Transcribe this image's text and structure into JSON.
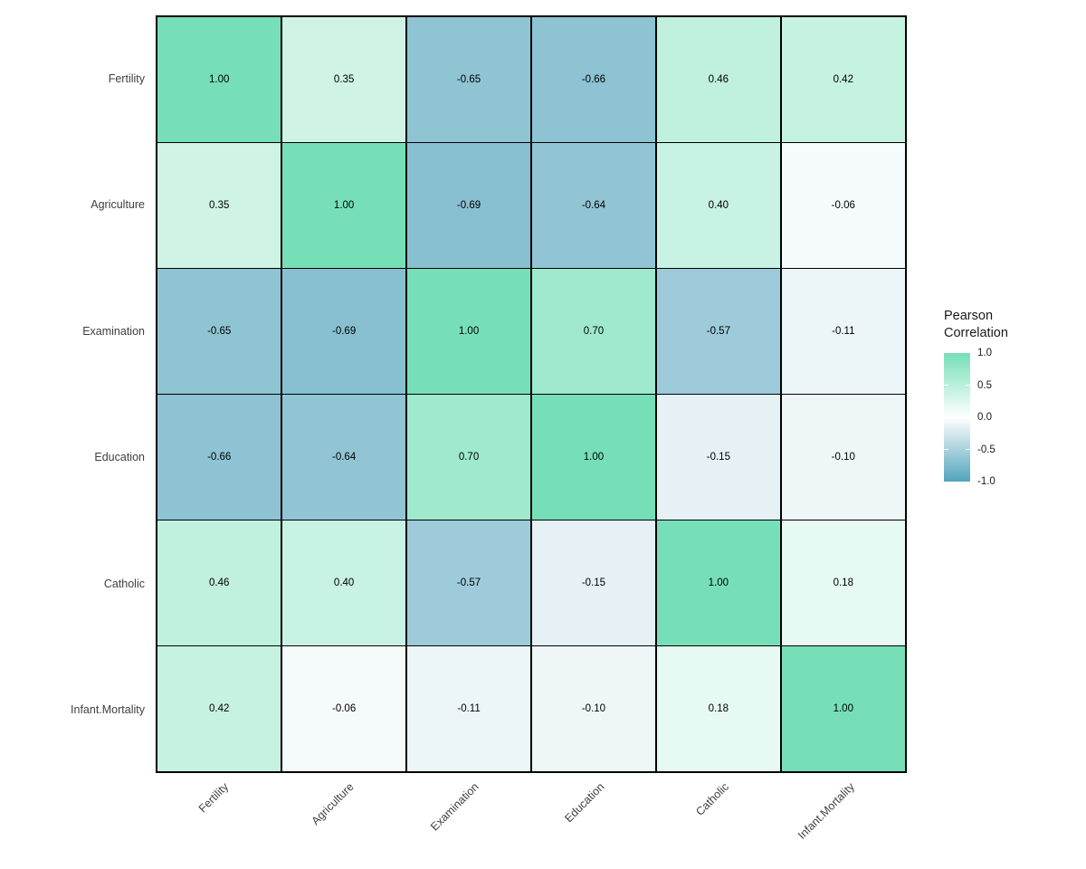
{
  "chart_data": {
    "type": "heatmap",
    "title": "",
    "variables": [
      "Fertility",
      "Agriculture",
      "Examination",
      "Education",
      "Catholic",
      "Infant.Mortality"
    ],
    "matrix": [
      [
        1.0,
        0.35,
        -0.65,
        -0.66,
        0.46,
        0.42
      ],
      [
        0.35,
        1.0,
        -0.69,
        -0.64,
        0.4,
        -0.06
      ],
      [
        -0.65,
        -0.69,
        1.0,
        0.7,
        -0.57,
        -0.11
      ],
      [
        -0.66,
        -0.64,
        0.7,
        1.0,
        -0.15,
        -0.1
      ],
      [
        0.46,
        0.4,
        -0.57,
        -0.15,
        1.0,
        0.18
      ],
      [
        0.42,
        -0.06,
        -0.11,
        -0.1,
        0.18,
        1.0
      ]
    ],
    "value_decimals": 2,
    "legend": {
      "title_lines": [
        "Pearson",
        "Correlation"
      ],
      "tick_labels": [
        "1.0",
        "0.5",
        "0.0",
        "-0.5",
        "-1.0"
      ],
      "range": [
        -1.0,
        1.0
      ],
      "position": "right"
    },
    "colors": {
      "high": "#76DFB8",
      "mid": "#FFFFFF",
      "low": "#53A4BC",
      "grid": "#000000",
      "cell_text": "#000000",
      "axis_text": "#404040"
    }
  }
}
